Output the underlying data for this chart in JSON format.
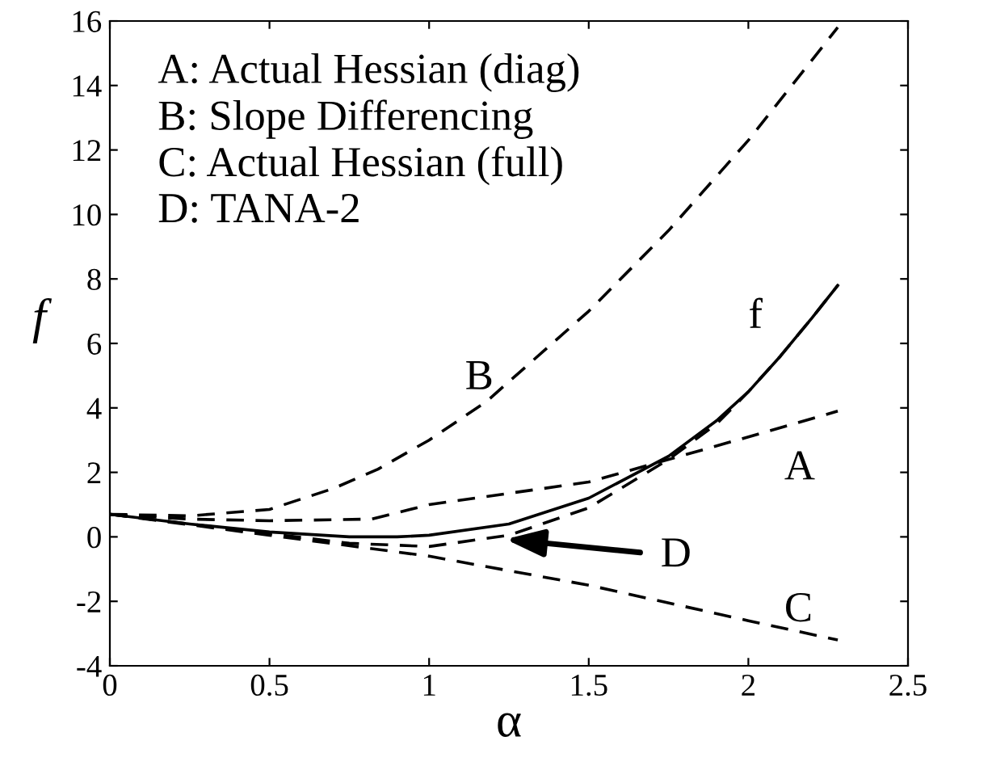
{
  "chart_data": {
    "type": "line",
    "xlabel": "α",
    "ylabel": "f",
    "xlim": [
      0,
      2.5
    ],
    "ylim": [
      -4,
      16
    ],
    "xticks": [
      0,
      0.5,
      1,
      1.5,
      2,
      2.5
    ],
    "yticks": [
      -4,
      -2,
      0,
      2,
      4,
      6,
      8,
      10,
      12,
      14,
      16
    ],
    "grid": false,
    "legend": false,
    "marker": "none",
    "series": [
      {
        "color": "#000000",
        "line_style": "solid",
        "x": [
          0,
          0.25,
          0.5,
          0.75,
          0.9,
          1.0,
          1.25,
          1.5,
          1.75,
          1.9,
          2.0,
          2.1,
          2.2,
          2.28
        ],
        "values": [
          0.7,
          0.4,
          0.15,
          0.0,
          0.0,
          0.05,
          0.4,
          1.2,
          2.5,
          3.6,
          4.5,
          5.6,
          6.8,
          7.8
        ]
      },
      {
        "color": "#000000",
        "line_style": "dashed",
        "x": [
          0,
          0.25,
          0.5,
          0.82,
          1.0,
          1.5,
          2.0,
          2.28
        ],
        "values": [
          0.7,
          0.55,
          0.5,
          0.55,
          1.0,
          1.7,
          3.1,
          3.9
        ]
      },
      {
        "color": "#000000",
        "line_style": "dashed",
        "x": [
          0,
          0.25,
          0.5,
          0.7,
          0.84,
          1.0,
          1.18,
          1.5,
          1.75,
          2.0,
          2.28
        ],
        "values": [
          0.7,
          0.65,
          0.85,
          1.5,
          2.1,
          3.0,
          4.2,
          7.0,
          9.5,
          12.3,
          15.8
        ]
      },
      {
        "color": "#000000",
        "line_style": "dashed",
        "x": [
          0,
          0.5,
          1.0,
          1.5,
          2.0,
          2.28
        ],
        "values": [
          0.7,
          0.05,
          -0.6,
          -1.5,
          -2.6,
          -3.2
        ]
      },
      {
        "color": "#000000",
        "line_style": "dashed",
        "x": [
          0,
          0.5,
          0.75,
          1.0,
          1.25,
          1.5,
          1.75,
          1.9,
          2.0,
          2.1,
          2.2,
          2.28
        ],
        "values": [
          0.7,
          0.1,
          -0.2,
          -0.3,
          0.05,
          0.9,
          2.4,
          3.5,
          4.5,
          5.6,
          6.8,
          7.8
        ]
      }
    ],
    "annotations": [
      "A: Actual Hessian (diag)",
      "B: Slope Differencing",
      "C: Actual Hessian (full)",
      "D: TANA-2",
      "f",
      "B",
      "A",
      "C",
      "D"
    ]
  }
}
